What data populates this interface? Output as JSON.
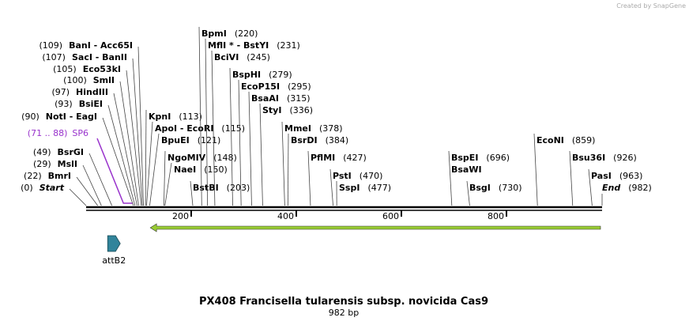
{
  "header": {
    "credit": "Created by SnapGene"
  },
  "title": "PX408 Francisella tularensis subsp. novicida Cas9",
  "subtitle": "982 bp",
  "ruler": {
    "start": 0,
    "end": 982,
    "ticks": [
      200,
      400,
      600,
      800
    ]
  },
  "enzymes": [
    {
      "name": "BanI  -  Acc65I",
      "site": 109,
      "label": "(109)"
    },
    {
      "name": "SacI  -  BanII",
      "site": 107,
      "label": "(107)"
    },
    {
      "name": "Eco53kI",
      "site": 105,
      "label": "(105)"
    },
    {
      "name": "SmlI",
      "site": 100,
      "label": "(100)"
    },
    {
      "name": "HindIII",
      "site": 97,
      "label": "(97)"
    },
    {
      "name": "BsiEI",
      "site": 93,
      "label": "(93)"
    },
    {
      "name": "NotI  -  EagI",
      "site": 90,
      "label": "(90)"
    },
    {
      "name": "BsrGI",
      "site": 49,
      "label": "(49)"
    },
    {
      "name": "MslI",
      "site": 29,
      "label": "(29)"
    },
    {
      "name": "BmrI",
      "site": 22,
      "label": "(22)"
    },
    {
      "name": "Start",
      "site": 0,
      "label": "(0)",
      "italic": true
    },
    {
      "name": "KpnI",
      "site": 113,
      "label": "(113)"
    },
    {
      "name": "ApoI  -  EcoRI",
      "site": 115,
      "label": "(115)"
    },
    {
      "name": "BpuEI",
      "site": 121,
      "label": "(121)"
    },
    {
      "name": "NgoMIV",
      "site": 148,
      "label": "(148)"
    },
    {
      "name": "NaeI",
      "site": 150,
      "label": "(150)"
    },
    {
      "name": "BstBI",
      "site": 203,
      "label": "(203)"
    },
    {
      "name": "BpmI",
      "site": 220,
      "label": "(220)"
    },
    {
      "name": "MflI *  -  BstYI",
      "site": 231,
      "label": "(231)"
    },
    {
      "name": "BciVI",
      "site": 245,
      "label": "(245)"
    },
    {
      "name": "BspHI",
      "site": 279,
      "label": "(279)"
    },
    {
      "name": "EcoP15I",
      "site": 295,
      "label": "(295)"
    },
    {
      "name": "BsaAI",
      "site": 315,
      "label": "(315)"
    },
    {
      "name": "StyI",
      "site": 336,
      "label": "(336)"
    },
    {
      "name": "MmeI",
      "site": 378,
      "label": "(378)"
    },
    {
      "name": "BsrDI",
      "site": 384,
      "label": "(384)"
    },
    {
      "name": "PflMI",
      "site": 427,
      "label": "(427)"
    },
    {
      "name": "BspEI",
      "site": 696,
      "label": "(696)"
    },
    {
      "name": "BsaWI",
      "site": 696
    },
    {
      "name": "PstI",
      "site": 470,
      "label": "(470)"
    },
    {
      "name": "SspI",
      "site": 477,
      "label": "(477)"
    },
    {
      "name": "BsgI",
      "site": 730,
      "label": "(730)"
    },
    {
      "name": "EcoNI",
      "site": 859,
      "label": "(859)"
    },
    {
      "name": "Bsu36I",
      "site": 926,
      "label": "(926)"
    },
    {
      "name": "PasI",
      "site": 963,
      "label": "(963)"
    },
    {
      "name": "End",
      "site": 982,
      "label": "(982)",
      "italic": true
    }
  ],
  "primers": [
    {
      "name": "SP6",
      "start": 71,
      "end": 88,
      "label": "(71 .. 88)",
      "color": "#9933cc"
    }
  ],
  "features": [
    {
      "start": 122,
      "end": 979,
      "direction": "reverse",
      "color": "#99cc33"
    },
    {
      "name": "attB2",
      "start": 41,
      "end": 65,
      "direction": "forward",
      "color": "#31849b"
    }
  ]
}
